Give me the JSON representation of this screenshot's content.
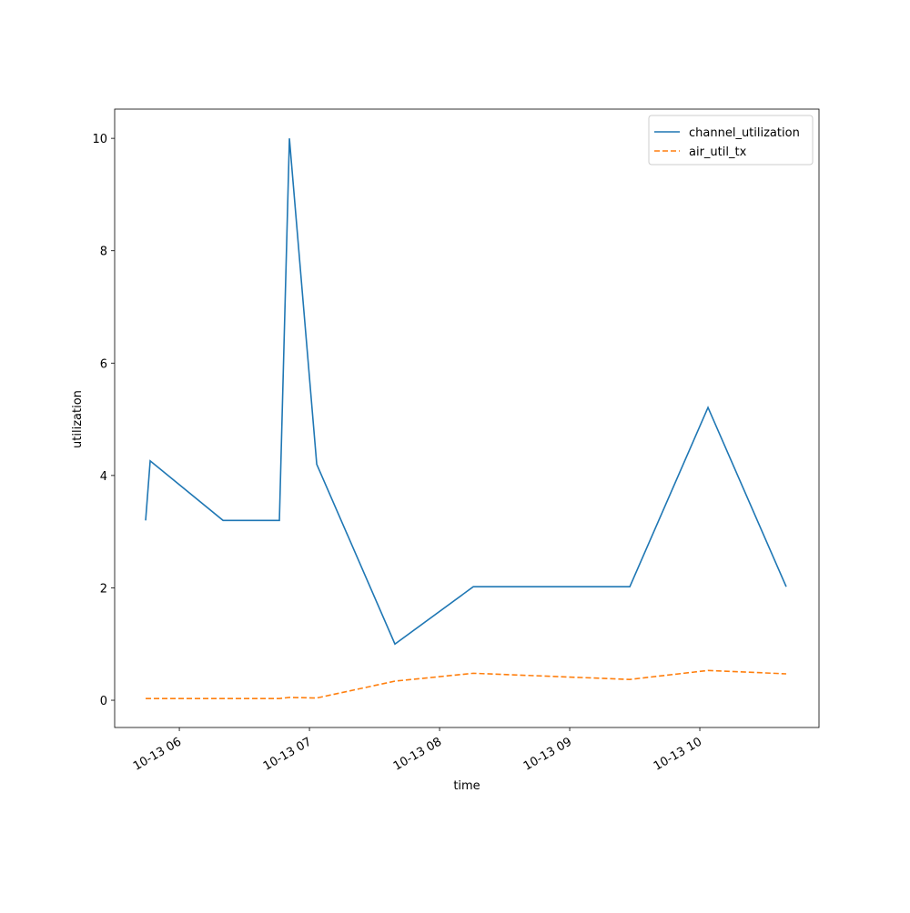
{
  "chart_data": {
    "type": "line",
    "x_label": "time",
    "y_label": "utilization",
    "x": [
      5.741,
      5.776,
      6.336,
      6.769,
      6.846,
      7.056,
      7.657,
      8.259,
      9.462,
      10.063,
      10.664
    ],
    "series": [
      {
        "name": "channel_utilization",
        "color": "#1f77b4",
        "linestyle": "solid",
        "values": [
          3.2,
          4.26,
          3.2,
          3.2,
          10.0,
          4.2,
          1.0,
          2.02,
          2.02,
          5.21,
          2.02
        ]
      },
      {
        "name": "air_util_tx",
        "color": "#ff7f0e",
        "linestyle": "dashed",
        "values": [
          0.03,
          0.03,
          0.03,
          0.03,
          0.05,
          0.04,
          0.34,
          0.48,
          0.37,
          0.53,
          0.47
        ]
      }
    ],
    "xlim": [
      5.503,
      10.916
    ],
    "xticks": [
      {
        "value": 6,
        "label": "10-13 06"
      },
      {
        "value": 7,
        "label": "10-13 07"
      },
      {
        "value": 8,
        "label": "10-13 08"
      },
      {
        "value": 9,
        "label": "10-13 09"
      },
      {
        "value": 10,
        "label": "10-13 10"
      }
    ],
    "ylim": [
      -0.485,
      10.52
    ],
    "yticks": [
      0,
      2,
      4,
      6,
      8,
      10
    ],
    "legend": "upper right"
  }
}
